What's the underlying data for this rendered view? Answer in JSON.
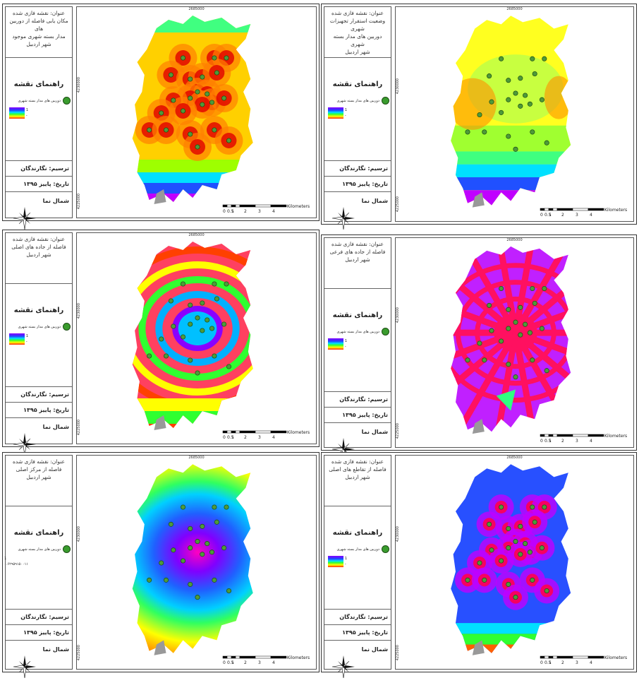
{
  "common": {
    "legend_heading": "راهنمای نقشه",
    "legend_item": "دوربین های مدار بسته شهری",
    "ramp_high": "1",
    "ramp_low": "-",
    "author": "ترسیم: نگارندگان",
    "date": "تاریخ: پاییز ۱۳۹۵",
    "north": "شمال نما",
    "coord_top": "2685000",
    "coord_left_upper": "4230000",
    "coord_left_lower": "4225000",
    "scale_ticks": [
      "0",
      "0.5",
      "1",
      "2",
      "3",
      "4"
    ],
    "scale_unit": "Kilometers",
    "camera_color": "#4e9a3a"
  },
  "panels": [
    {
      "title_lines": [
        "عنوان: نقشه فازی شده",
        "مکان یابی فاصله از دوربین های",
        "مدار بسته شهری موجود",
        "شهر اردبیل"
      ],
      "ramp_low": "-",
      "style": "buffer"
    },
    {
      "title_lines": [
        "عنوان: نقشه فازی شده",
        "وضعیت استقرار تجهیزات شهری",
        "دوربین های مدار بسته شهری",
        "شهر اردبیل"
      ],
      "ramp_low": "-",
      "style": "density"
    },
    {
      "title_lines": [
        "عنوان: نقشه فازی شده",
        "فاصله از جاده های اصلی",
        "شهر اردبیل"
      ],
      "ramp_low": "-",
      "style": "roads"
    },
    {
      "title_lines": [
        "عنوان: نقشه فازی شده",
        "فاصله از جاده های فرعی",
        "شهر اردبیل"
      ],
      "ramp_low": "-",
      "style": "minor"
    },
    {
      "title_lines": [
        "عنوان: نقشه فازی شده",
        "فاصله از مرکز اصلی",
        "شهر اردبیل"
      ],
      "ramp_low": "۰.۶۲۹۵۹۱۵۰۰۱۱",
      "style": "radial"
    },
    {
      "title_lines": [
        "عنوان: نقشه فازی شده",
        "فاصله از تقاطع های اصلی",
        "شهر اردبیل"
      ],
      "ramp_low": "-",
      "style": "junctions"
    }
  ]
}
